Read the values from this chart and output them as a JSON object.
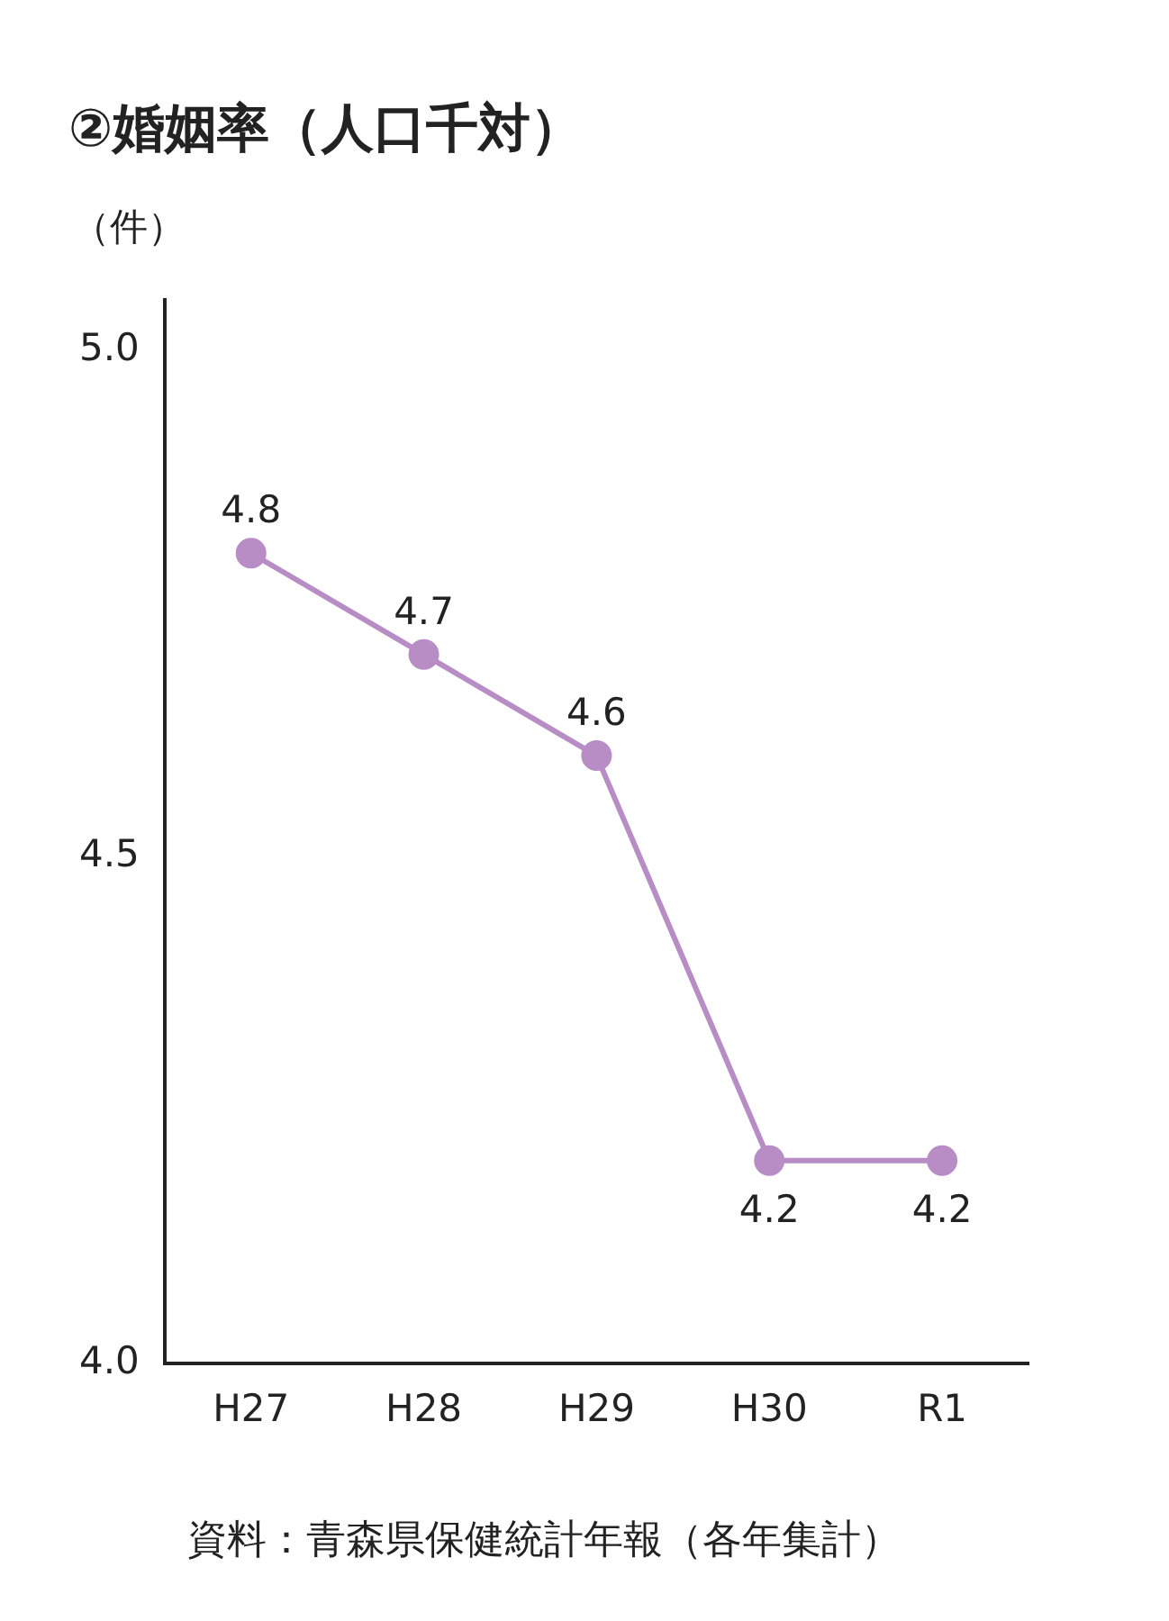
{
  "chart_data": {
    "type": "line",
    "title": "②婚姻率（人口千対）",
    "ylabel": "（件）",
    "categories": [
      "H27",
      "H28",
      "H29",
      "H30",
      "R1"
    ],
    "series": [
      {
        "color": "#b88cc4",
        "values": [
          4.8,
          4.7,
          4.6,
          4.2,
          4.2
        ]
      }
    ],
    "ylim": [
      4,
      5.05
    ],
    "yticks": [
      {
        "value": 4,
        "label": "4.0"
      },
      {
        "value": 4.5,
        "label": "4.5"
      },
      {
        "value": 5,
        "label": "5.0"
      }
    ],
    "grid": false,
    "legend": false,
    "marker": "circle",
    "line_style": "solid",
    "data_labels": true,
    "annotations": [
      "資料：青森県保健統計年報（各年集計）"
    ]
  }
}
